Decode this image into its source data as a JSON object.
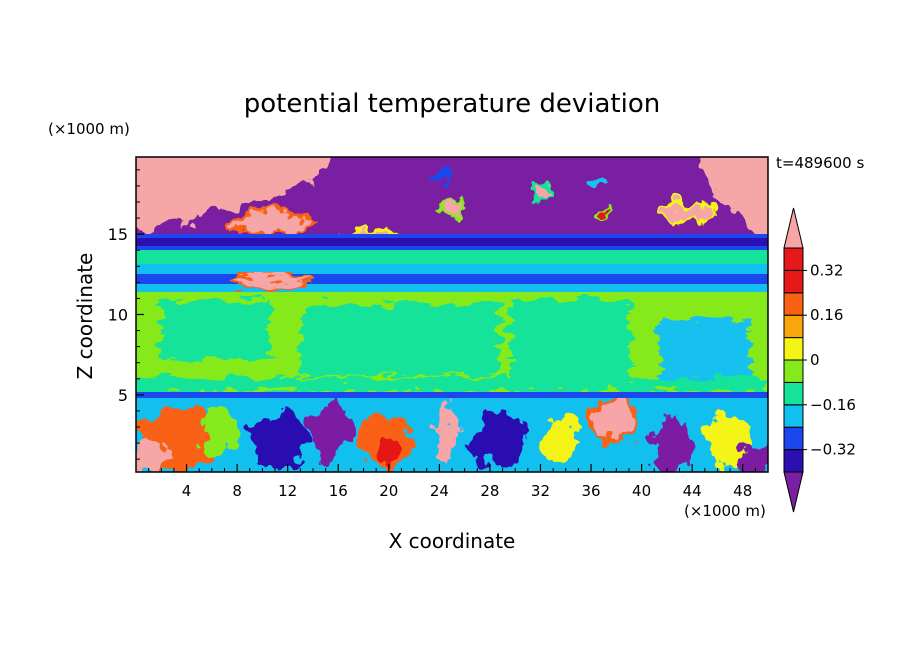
{
  "chart_data": {
    "type": "heatmap",
    "title": "potential temperature deviation",
    "xlabel": "X coordinate",
    "ylabel": "Z coordinate",
    "x_unit": "(×1000 m)",
    "y_unit": "(×1000 m)",
    "time_label": "t=489600 s",
    "xlim": [
      0,
      50
    ],
    "ylim": [
      0.2,
      19.8
    ],
    "x_ticks": [
      4,
      8,
      12,
      16,
      20,
      24,
      28,
      32,
      36,
      40,
      44,
      48
    ],
    "y_ticks": [
      5,
      10,
      15
    ],
    "colorbar": {
      "levels": [
        -0.4,
        -0.32,
        -0.24,
        -0.16,
        -0.08,
        0,
        0.08,
        0.16,
        0.24,
        0.32,
        0.4
      ],
      "labels": [
        {
          "value": 0.32,
          "text": "0.32"
        },
        {
          "value": 0.16,
          "text": "0.16"
        },
        {
          "value": 0,
          "text": "0"
        },
        {
          "value": -0.16,
          "text": "−0.16"
        },
        {
          "value": -0.32,
          "text": "−0.32"
        }
      ],
      "colors": [
        "#7b1fa2",
        "#2c0fb0",
        "#1c46ee",
        "#12c0ef",
        "#16e39a",
        "#86ea1a",
        "#f4f515",
        "#f8a60b",
        "#f96213",
        "#e51919",
        "#f6a6a6"
      ]
    }
  }
}
